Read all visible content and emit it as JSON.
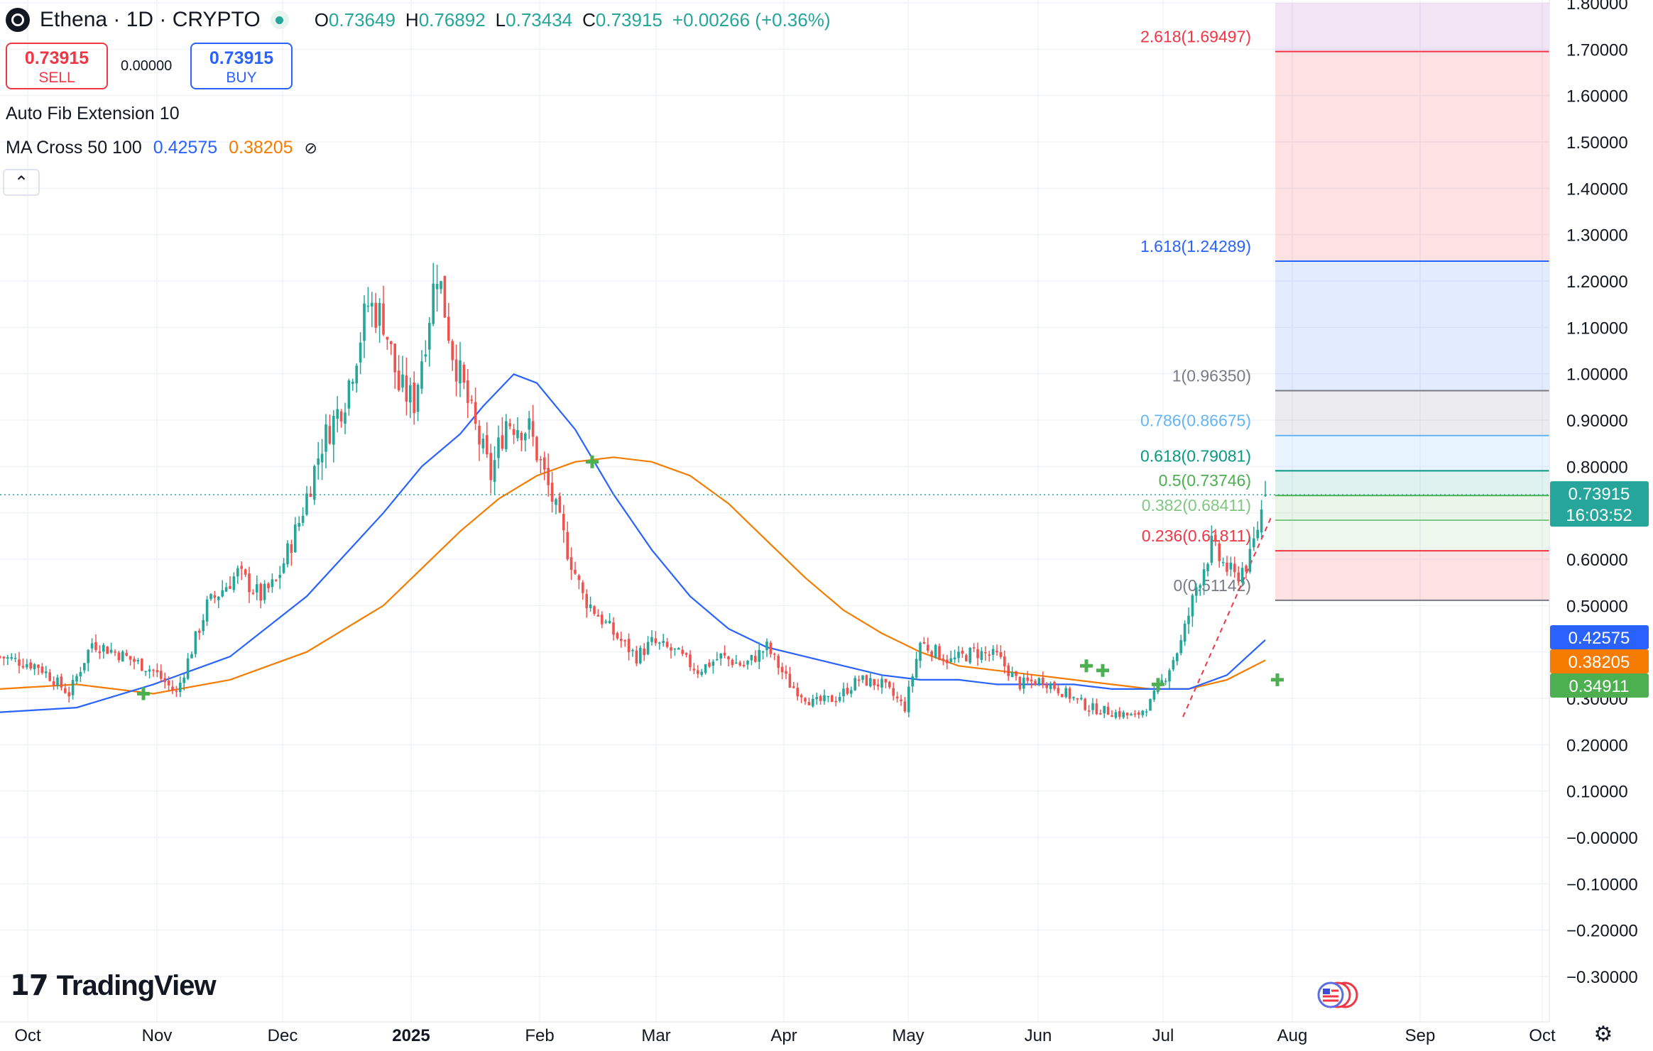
{
  "header": {
    "symbol": "Ethena · 1D · CRYPTO",
    "open_label": "O",
    "open": "0.73649",
    "high_label": "H",
    "high": "0.76892",
    "low_label": "L",
    "low": "0.73434",
    "close_label": "C",
    "close": "0.73915",
    "change": "+0.00266 (+0.36%)"
  },
  "trade": {
    "sell_price": "0.73915",
    "sell_label": "SELL",
    "spread": "0.00000",
    "buy_price": "0.73915",
    "buy_label": "BUY"
  },
  "indicators": {
    "fib_name": "Auto Fib Extension 10",
    "ma_name": "MA Cross 50 100",
    "ma_fast": "0.42575",
    "ma_slow": "0.38205",
    "ma_toggle": "⊘"
  },
  "branding": {
    "logo_text": "TradingView",
    "logo_mark": "17"
  },
  "colors": {
    "up": "#26a69a",
    "down": "#ef5350",
    "ma_fast": "#2962ff",
    "ma_slow": "#f57c00",
    "grid": "#f0f3fa"
  },
  "chart_data": {
    "type": "candlestick",
    "xlabels": [
      "Oct",
      "Nov",
      "Dec",
      "2025",
      "Feb",
      "Mar",
      "Apr",
      "May",
      "Jun",
      "Jul",
      "Aug",
      "Sep",
      "Oct"
    ],
    "ylim": [
      -0.35,
      1.8
    ],
    "y_ticks": [
      "1.80000",
      "1.70000",
      "1.60000",
      "1.50000",
      "1.40000",
      "1.30000",
      "1.20000",
      "1.10000",
      "1.00000",
      "0.90000",
      "0.80000",
      "0.70000",
      "0.60000",
      "0.50000",
      "0.40000",
      "0.30000",
      "0.20000",
      "0.10000",
      "−0.00000",
      "−0.10000",
      "−0.20000",
      "−0.30000"
    ],
    "current_price": "0.73915",
    "countdown": "16:03:52",
    "ma_fast_badge": "0.42575",
    "ma_slow_badge": "0.38205",
    "low_badge": "0.34911",
    "fib_levels": [
      {
        "label": "2.618(1.69497)",
        "value": 1.69497,
        "color": "#f23645"
      },
      {
        "label": "1.618(1.24289)",
        "value": 1.24289,
        "color": "#2962ff"
      },
      {
        "label": "1(0.96350)",
        "value": 0.9635,
        "color": "#787b86"
      },
      {
        "label": "0.786(0.86675)",
        "value": 0.86675,
        "color": "#64b5f6"
      },
      {
        "label": "0.618(0.79081)",
        "value": 0.79081,
        "color": "#089981"
      },
      {
        "label": "0.5(0.73746)",
        "value": 0.73746,
        "color": "#4caf50"
      },
      {
        "label": "0.382(0.68411)",
        "value": 0.68411,
        "color": "#81c784"
      },
      {
        "label": "0.236(0.61811)",
        "value": 0.61811,
        "color": "#f23645"
      },
      {
        "label": "0(0.51142)",
        "value": 0.51142,
        "color": "#787b86"
      }
    ],
    "fib_zones": [
      {
        "from": 1.69497,
        "to": 1.8,
        "color": "rgba(156,39,176,0.13)"
      },
      {
        "from": 1.24289,
        "to": 1.69497,
        "color": "rgba(242,54,69,0.15)"
      },
      {
        "from": 0.9635,
        "to": 1.24289,
        "color": "rgba(41,98,255,0.13)"
      },
      {
        "from": 0.86675,
        "to": 0.9635,
        "color": "rgba(120,123,134,0.14)"
      },
      {
        "from": 0.79081,
        "to": 0.86675,
        "color": "rgba(100,181,246,0.14)"
      },
      {
        "from": 0.73746,
        "to": 0.79081,
        "color": "rgba(8,153,129,0.13)"
      },
      {
        "from": 0.68411,
        "to": 0.73746,
        "color": "rgba(76,175,80,0.13)"
      },
      {
        "from": 0.61811,
        "to": 0.68411,
        "color": "rgba(76,175,80,0.10)"
      },
      {
        "from": 0.51142,
        "to": 0.61811,
        "color": "rgba(242,54,69,0.15)"
      }
    ],
    "close_path": [
      [
        0,
        0.39
      ],
      [
        10,
        0.37
      ],
      [
        18,
        0.31
      ],
      [
        24,
        0.42
      ],
      [
        30,
        0.4
      ],
      [
        40,
        0.36
      ],
      [
        46,
        0.31
      ],
      [
        54,
        0.5
      ],
      [
        62,
        0.57
      ],
      [
        68,
        0.52
      ],
      [
        72,
        0.55
      ],
      [
        78,
        0.68
      ],
      [
        84,
        0.85
      ],
      [
        90,
        0.95
      ],
      [
        96,
        1.15
      ],
      [
        100,
        1.12
      ],
      [
        104,
        0.97
      ],
      [
        108,
        0.94
      ],
      [
        114,
        1.23
      ],
      [
        118,
        1.05
      ],
      [
        124,
        0.88
      ],
      [
        128,
        0.78
      ],
      [
        132,
        0.9
      ],
      [
        138,
        0.88
      ],
      [
        144,
        0.73
      ],
      [
        148,
        0.62
      ],
      [
        152,
        0.52
      ],
      [
        160,
        0.44
      ],
      [
        166,
        0.39
      ],
      [
        170,
        0.42
      ],
      [
        176,
        0.4
      ],
      [
        182,
        0.36
      ],
      [
        188,
        0.39
      ],
      [
        194,
        0.37
      ],
      [
        200,
        0.41
      ],
      [
        206,
        0.33
      ],
      [
        212,
        0.29
      ],
      [
        218,
        0.3
      ],
      [
        224,
        0.34
      ],
      [
        230,
        0.33
      ],
      [
        236,
        0.28
      ],
      [
        240,
        0.42
      ],
      [
        244,
        0.4
      ],
      [
        248,
        0.38
      ],
      [
        254,
        0.4
      ],
      [
        260,
        0.39
      ],
      [
        266,
        0.33
      ],
      [
        272,
        0.34
      ],
      [
        278,
        0.31
      ],
      [
        284,
        0.28
      ],
      [
        290,
        0.27
      ],
      [
        296,
        0.26
      ],
      [
        300,
        0.29
      ],
      [
        304,
        0.35
      ],
      [
        308,
        0.42
      ],
      [
        312,
        0.54
      ],
      [
        316,
        0.63
      ],
      [
        318,
        0.6
      ],
      [
        322,
        0.56
      ],
      [
        326,
        0.6
      ],
      [
        328,
        0.67
      ],
      [
        330,
        0.739
      ]
    ],
    "ma_fast_series": [
      [
        0,
        0.27
      ],
      [
        20,
        0.28
      ],
      [
        40,
        0.33
      ],
      [
        60,
        0.39
      ],
      [
        80,
        0.52
      ],
      [
        100,
        0.7
      ],
      [
        110,
        0.8
      ],
      [
        120,
        0.87
      ],
      [
        126,
        0.93
      ],
      [
        134,
        0.999
      ],
      [
        140,
        0.98
      ],
      [
        150,
        0.88
      ],
      [
        160,
        0.74
      ],
      [
        170,
        0.62
      ],
      [
        180,
        0.52
      ],
      [
        190,
        0.45
      ],
      [
        200,
        0.41
      ],
      [
        210,
        0.39
      ],
      [
        220,
        0.37
      ],
      [
        230,
        0.35
      ],
      [
        240,
        0.34
      ],
      [
        250,
        0.34
      ],
      [
        260,
        0.33
      ],
      [
        270,
        0.33
      ],
      [
        280,
        0.33
      ],
      [
        290,
        0.32
      ],
      [
        300,
        0.32
      ],
      [
        310,
        0.32
      ],
      [
        320,
        0.35
      ],
      [
        330,
        0.42575
      ]
    ],
    "ma_slow_series": [
      [
        0,
        0.32
      ],
      [
        20,
        0.33
      ],
      [
        40,
        0.31
      ],
      [
        60,
        0.34
      ],
      [
        80,
        0.4
      ],
      [
        100,
        0.5
      ],
      [
        110,
        0.58
      ],
      [
        120,
        0.66
      ],
      [
        130,
        0.73
      ],
      [
        140,
        0.78
      ],
      [
        150,
        0.81
      ],
      [
        160,
        0.82
      ],
      [
        170,
        0.81
      ],
      [
        180,
        0.78
      ],
      [
        190,
        0.72
      ],
      [
        200,
        0.64
      ],
      [
        210,
        0.56
      ],
      [
        220,
        0.49
      ],
      [
        230,
        0.44
      ],
      [
        240,
        0.4
      ],
      [
        250,
        0.37
      ],
      [
        260,
        0.36
      ],
      [
        270,
        0.35
      ],
      [
        280,
        0.34
      ],
      [
        290,
        0.33
      ],
      [
        300,
        0.32
      ],
      [
        310,
        0.32
      ],
      [
        320,
        0.34
      ],
      [
        330,
        0.38205
      ]
    ],
    "cross_marks": [
      [
        38,
        0.31
      ],
      [
        165,
        0.81
      ],
      [
        300,
        0.37
      ],
      [
        305,
        0.36
      ],
      [
        323,
        0.33
      ],
      [
        352,
        0.34
      ]
    ],
    "price_axis": "right",
    "grid": true
  }
}
